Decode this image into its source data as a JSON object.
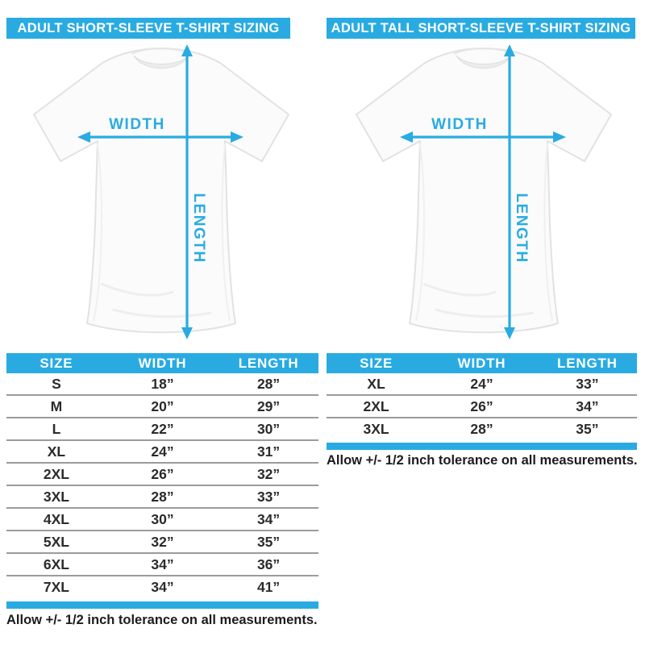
{
  "colors": {
    "accent": "#29abe2",
    "table_line": "#9b9b9b",
    "text": "#2b2b2b",
    "note_text": "#1c1c1c"
  },
  "panels": [
    {
      "title": "ADULT SHORT-SLEEVE T-SHIRT SIZING",
      "diagram": {
        "width_label": "WIDTH",
        "length_label": "LENGTH"
      },
      "table": {
        "headers": [
          "SIZE",
          "WIDTH",
          "LENGTH"
        ],
        "rows": [
          [
            "S",
            "18”",
            "28”"
          ],
          [
            "M",
            "20”",
            "29”"
          ],
          [
            "L",
            "22”",
            "30”"
          ],
          [
            "XL",
            "24”",
            "31”"
          ],
          [
            "2XL",
            "26”",
            "32”"
          ],
          [
            "3XL",
            "28”",
            "33”"
          ],
          [
            "4XL",
            "30”",
            "34”"
          ],
          [
            "5XL",
            "32”",
            "35”"
          ],
          [
            "6XL",
            "34”",
            "36”"
          ],
          [
            "7XL",
            "34”",
            "41”"
          ]
        ]
      },
      "note": "Allow +/- 1/2 inch tolerance on all measurements."
    },
    {
      "title": "ADULT TALL SHORT-SLEEVE T-SHIRT SIZING",
      "diagram": {
        "width_label": "WIDTH",
        "length_label": "LENGTH"
      },
      "table": {
        "headers": [
          "SIZE",
          "WIDTH",
          "LENGTH"
        ],
        "rows": [
          [
            "XL",
            "24”",
            "33”"
          ],
          [
            "2XL",
            "26”",
            "34”"
          ],
          [
            "3XL",
            "28”",
            "35”"
          ]
        ]
      },
      "note": "Allow +/- 1/2 inch tolerance on all measurements."
    }
  ]
}
